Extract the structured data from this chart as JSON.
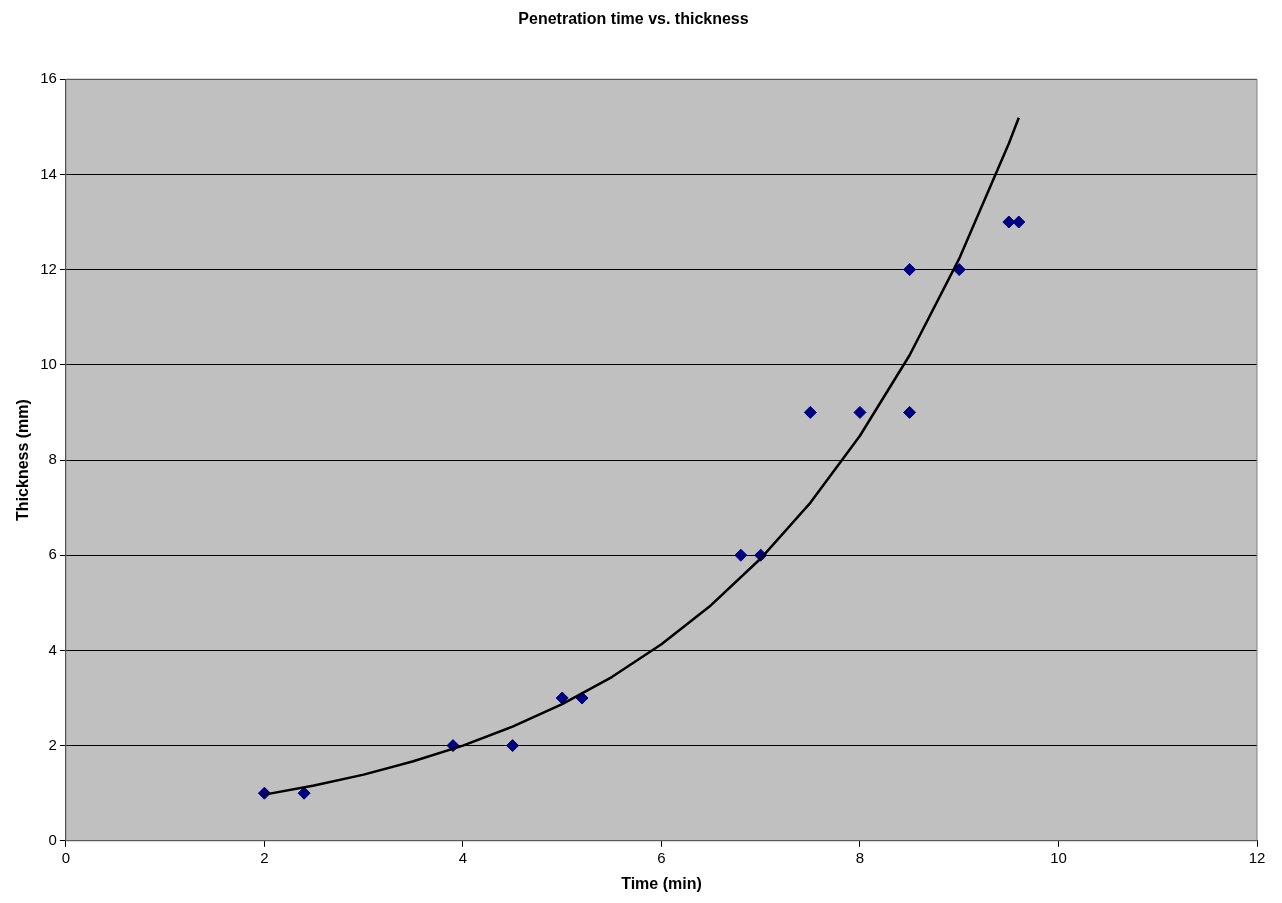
{
  "chart_data": {
    "type": "scatter",
    "title": "Penetration time vs. thickness",
    "xlabel": "Time (min)",
    "ylabel": "Thickness (mm)",
    "x": [
      2,
      2.4,
      3.9,
      4.5,
      5,
      5.2,
      6.8,
      7,
      7.5,
      8,
      8.5,
      8.5,
      9,
      9.5,
      9.6
    ],
    "series": [
      {
        "color": "#000080",
        "marker": "diamond",
        "values": [
          1,
          1,
          2,
          2,
          3,
          3,
          6,
          6,
          9,
          9,
          9,
          12,
          12,
          13,
          13
        ]
      },
      {
        "type": "line",
        "color": "#000000",
        "marker": "none",
        "line_style": "solid",
        "x": [
          2,
          2.5,
          3,
          3.5,
          4,
          4.5,
          5,
          5.5,
          6,
          6.5,
          7,
          7.5,
          8,
          8.5,
          9,
          9.5,
          9.6
        ],
        "values": [
          0.97,
          1.16,
          1.39,
          1.67,
          2.0,
          2.4,
          2.87,
          3.44,
          4.13,
          4.95,
          5.93,
          7.1,
          8.51,
          10.2,
          12.23,
          14.65,
          15.19
        ]
      }
    ],
    "xlim": [
      0,
      12
    ],
    "xticks": [
      0,
      2,
      4,
      6,
      8,
      10,
      12
    ],
    "ylim": [
      0,
      16
    ],
    "yticks": [
      0,
      2,
      4,
      6,
      8,
      10,
      12,
      14,
      16
    ],
    "grid": "y",
    "legend": false
  }
}
